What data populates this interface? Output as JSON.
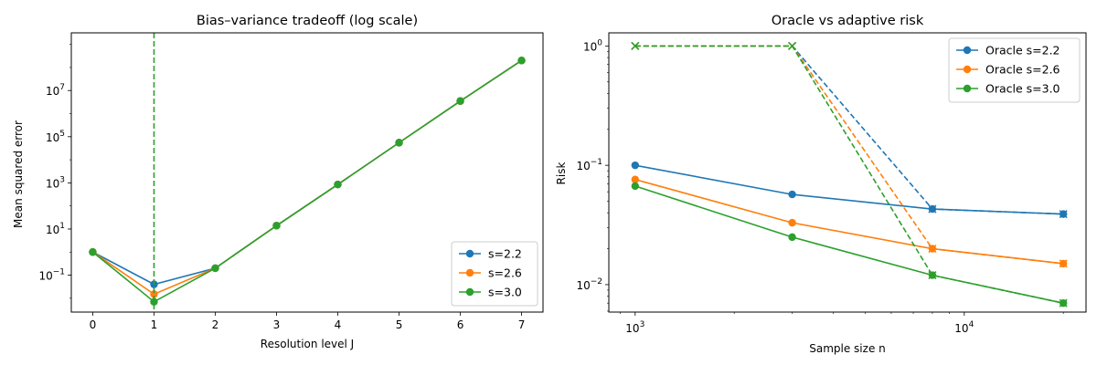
{
  "chart_data": [
    {
      "type": "line",
      "title": "Bias–variance tradeoff (log scale)",
      "xlabel": "Resolution level J",
      "ylabel": "Mean squared error",
      "yscale": "log",
      "xlim": [
        -0.35,
        7.35
      ],
      "ylim_log10": [
        -2.6,
        9.5
      ],
      "x": [
        0,
        1,
        2,
        3,
        4,
        5,
        6,
        7
      ],
      "xticks": [
        "0",
        "1",
        "2",
        "3",
        "4",
        "5",
        "6",
        "7"
      ],
      "yticks": [
        {
          "exp": -1,
          "label": "10",
          "sup": "−1"
        },
        {
          "exp": 1,
          "label": "10",
          "sup": "1"
        },
        {
          "exp": 3,
          "label": "10",
          "sup": "3"
        },
        {
          "exp": 5,
          "label": "10",
          "sup": "5"
        },
        {
          "exp": 7,
          "label": "10",
          "sup": "7"
        }
      ],
      "vline_x": 1,
      "legend_position": "lower-right",
      "series": [
        {
          "name": "s=2.2",
          "color": "#1f77b4",
          "values": [
            1.0,
            0.04,
            0.2,
            14,
            850,
            55000,
            3500000,
            200000000
          ]
        },
        {
          "name": "s=2.6",
          "color": "#ff7f0e",
          "values": [
            1.0,
            0.015,
            0.2,
            14,
            850,
            55000,
            3500000,
            200000000
          ]
        },
        {
          "name": "s=3.0",
          "color": "#2ca02c",
          "values": [
            1.0,
            0.007,
            0.2,
            14,
            850,
            55000,
            3500000,
            200000000
          ]
        }
      ]
    },
    {
      "type": "line",
      "title": "Oracle vs adaptive risk",
      "xlabel": "Sample size n",
      "ylabel": "Risk",
      "xscale": "log",
      "yscale": "log",
      "xlim_log10": [
        2.92,
        4.37
      ],
      "ylim_log10": [
        -2.23,
        0.11
      ],
      "x": [
        1000,
        3000,
        8000,
        20000
      ],
      "xticks": [
        {
          "exp": 3,
          "label": "10",
          "sup": "3"
        },
        {
          "exp": 4,
          "label": "10",
          "sup": "4"
        }
      ],
      "yticks": [
        {
          "exp": -2,
          "label": "10",
          "sup": "−2"
        },
        {
          "exp": -1,
          "label": "10",
          "sup": "−1"
        },
        {
          "exp": 0,
          "label": "10",
          "sup": "0"
        }
      ],
      "legend_position": "upper-right",
      "series": [
        {
          "name": "Oracle s=2.2",
          "color": "#1f77b4",
          "values": [
            0.1,
            0.057,
            0.043,
            0.039
          ],
          "adaptive": [
            1.0,
            1.0,
            0.043,
            0.039
          ]
        },
        {
          "name": "Oracle s=2.6",
          "color": "#ff7f0e",
          "values": [
            0.076,
            0.033,
            0.02,
            0.015
          ],
          "adaptive": [
            1.0,
            1.0,
            0.02,
            0.015
          ]
        },
        {
          "name": "Oracle s=3.0",
          "color": "#2ca02c",
          "values": [
            0.067,
            0.025,
            0.012,
            0.007
          ],
          "adaptive": [
            1.0,
            1.0,
            0.012,
            0.007
          ]
        }
      ]
    }
  ]
}
